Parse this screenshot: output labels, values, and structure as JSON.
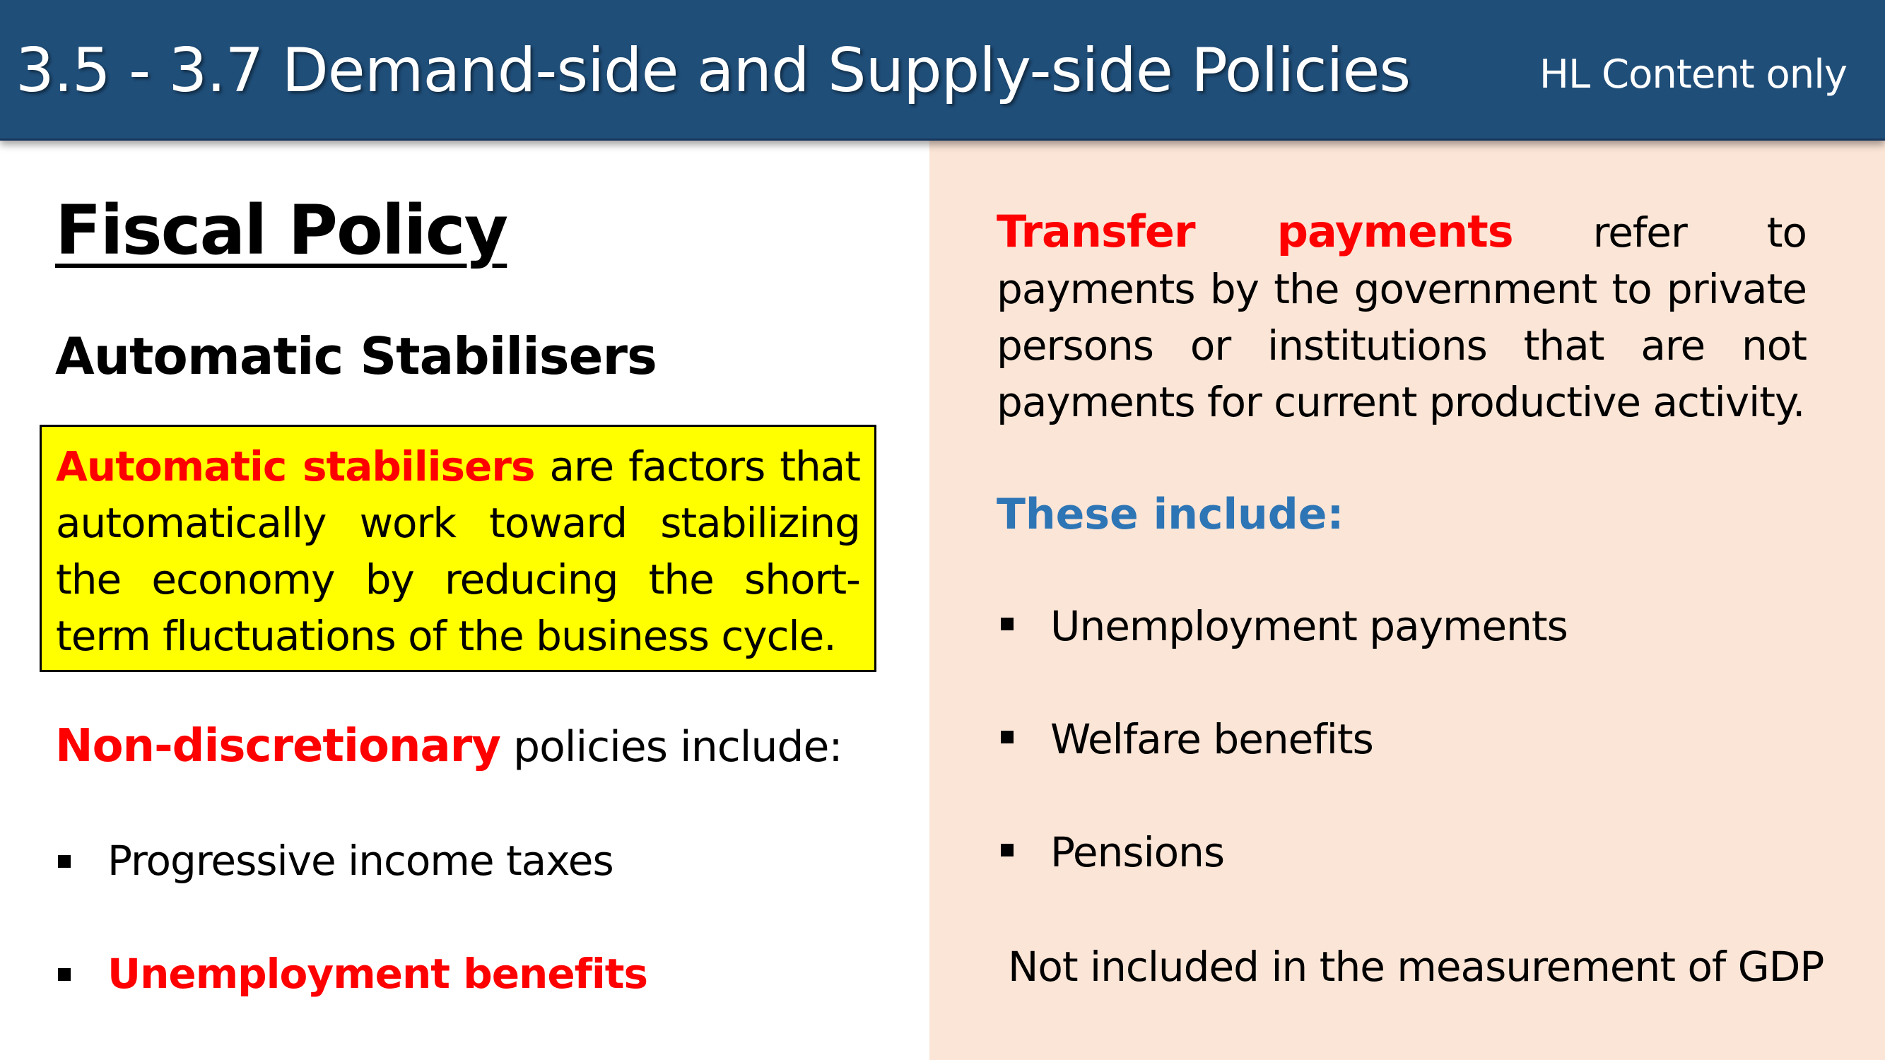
{
  "header": {
    "title": "3.5 - 3.7 Demand-side and Supply-side Policies",
    "badge": "HL Content only"
  },
  "left": {
    "heading": "Fiscal Policy",
    "subheading": "Automatic Stabilisers",
    "definition": {
      "term": "Automatic stabilisers",
      "text": " are factors that automatically work toward stabilizing the economy by reducing the short-term fluctuations  of the business cycle."
    },
    "non_discretionary": {
      "term": "Non-discretionary",
      "text": " policies include:"
    },
    "bullets": [
      "Progressive income taxes",
      "Unemployment benefits"
    ]
  },
  "right": {
    "transfer": {
      "term": "Transfer payments",
      "text": " refer to payments by the government to private persons or institutions that are not payments for current productive activity."
    },
    "these_include": "These include:",
    "bullets": [
      "Unemployment payments",
      "Welfare benefits",
      "Pensions"
    ],
    "note": "Not included in the measurement of GDP"
  },
  "colors": {
    "header_bg": "#1f4e79",
    "panel_bg": "#fbe5d6",
    "highlight_box": "#ffff00",
    "emphasis_red": "#ff0000",
    "accent_blue": "#2e75b6"
  }
}
